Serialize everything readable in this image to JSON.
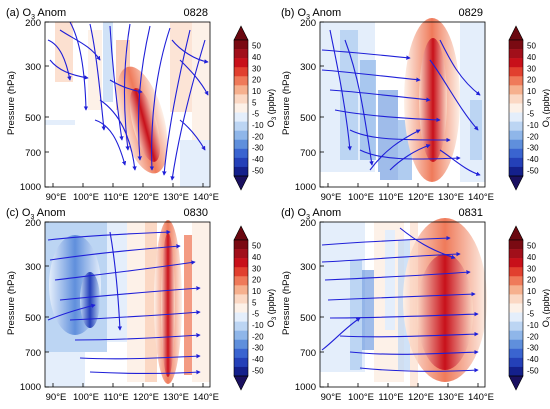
{
  "figure": {
    "colors": {
      "streamline": "#1f1fd8",
      "positive_core": "#c8101a",
      "negative_core": "#1a3fbf"
    },
    "colorbar": {
      "label": "O",
      "label_sub": "3",
      "label_unit": " (ppbv)",
      "tick_labels": [
        "50",
        "40",
        "30",
        "20",
        "10",
        "5",
        "-5",
        "-10",
        "-20",
        "-30",
        "-40",
        "-50"
      ],
      "colors": [
        "#7a0a12",
        "#a10f1a",
        "#c8101a",
        "#e1402f",
        "#ef7a5a",
        "#f6b08e",
        "#fbd8c4",
        "#fdf1e8",
        "#e4eefb",
        "#bcd5f3",
        "#8fb6e9",
        "#5f8fdc",
        "#3a64d0",
        "#2440b8",
        "#14208c"
      ],
      "top_tip_color": "#6a0810",
      "bottom_tip_color": "#1a1060"
    }
  },
  "chart_data": [
    {
      "type": "heatmap",
      "panel_label": "(a) O",
      "panel_sub": "3",
      "panel_suffix": " Anom",
      "date_label": "0828",
      "ylabel": "Pressure (hPa)",
      "y_ticks": [
        "200",
        "300",
        "500",
        "700",
        "1000"
      ],
      "x_ticks": [
        "90°E",
        "100°E",
        "110°E",
        "120°E",
        "130°E",
        "140°E"
      ],
      "xlim": [
        87,
        142
      ],
      "ylim": [
        1000,
        200
      ],
      "anomaly_core": {
        "lon": 120,
        "p": 500,
        "value": 40
      },
      "streamlines": "dense, converging toward 120°E"
    },
    {
      "type": "heatmap",
      "panel_label": "(b) O",
      "panel_sub": "3",
      "panel_suffix": " Anom",
      "date_label": "0829",
      "ylabel": "Pressure (hPa)",
      "y_ticks": [
        "200",
        "300",
        "500",
        "700",
        "1000"
      ],
      "x_ticks": [
        "90°E",
        "100°E",
        "110°E",
        "120°E",
        "130°E",
        "140°E"
      ],
      "xlim": [
        87,
        142
      ],
      "ylim": [
        1000,
        200
      ],
      "anomaly_core": {
        "lon": 126,
        "p": 450,
        "value": 45
      },
      "streamlines": "eastward, descending"
    },
    {
      "type": "heatmap",
      "panel_label": "(c) O",
      "panel_sub": "3",
      "panel_suffix": " Anom",
      "date_label": "0830",
      "ylabel": "Pressure (hPa)",
      "y_ticks": [
        "200",
        "300",
        "500",
        "700",
        "1000"
      ],
      "x_ticks": [
        "90°E",
        "100°E",
        "110°E",
        "120°E",
        "130°E",
        "140°E"
      ],
      "xlim": [
        87,
        142
      ],
      "ylim": [
        1000,
        200
      ],
      "anomaly_core": {
        "lon": 128,
        "p": 500,
        "value": 45
      },
      "streamlines": "eastward"
    },
    {
      "type": "heatmap",
      "panel_label": "(d) O",
      "panel_sub": "3",
      "panel_suffix": " Anom",
      "date_label": "0831",
      "ylabel": "Pressure (hPa)",
      "y_ticks": [
        "200",
        "300",
        "500",
        "700",
        "1000"
      ],
      "x_ticks": [
        "90°E",
        "100°E",
        "110°E",
        "120°E",
        "130°E",
        "140°E"
      ],
      "xlim": [
        87,
        142
      ],
      "ylim": [
        1000,
        200
      ],
      "anomaly_core": {
        "lon": 132,
        "p": 550,
        "value": 40
      },
      "streamlines": "eastward"
    }
  ]
}
